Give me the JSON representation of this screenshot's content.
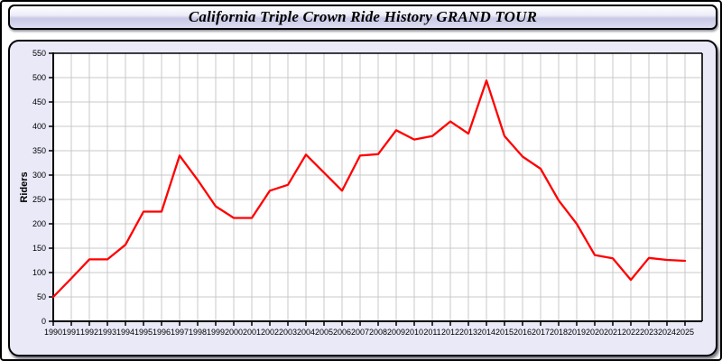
{
  "window": {
    "title": "California Triple Crown Ride History GRAND TOUR"
  },
  "chart_data": {
    "type": "line",
    "title": "California Triple Crown Ride History GRAND TOUR",
    "xlabel": "",
    "ylabel": "Riders",
    "ylim": [
      0,
      550
    ],
    "ytick_interval": 50,
    "grid": true,
    "legend": "none",
    "line_color": "#ff0000",
    "x": [
      1990,
      1991,
      1992,
      1993,
      1994,
      1995,
      1996,
      1997,
      1998,
      1999,
      2000,
      2001,
      2002,
      2003,
      2004,
      2005,
      2006,
      2007,
      2008,
      2009,
      2010,
      2011,
      2012,
      2013,
      2014,
      2015,
      2016,
      2017,
      2018,
      2019,
      2020,
      2021,
      2022,
      2023,
      2024,
      2025
    ],
    "series": [
      {
        "name": "Riders",
        "values": [
          50,
          88,
          127,
          127,
          157,
          225,
          225,
          340,
          290,
          236,
          212,
          212,
          268,
          280,
          342,
          305,
          268,
          340,
          343,
          392,
          373,
          380,
          410,
          385,
          494,
          380,
          338,
          313,
          248,
          200,
          136,
          129,
          85,
          130,
          126,
          124
        ]
      }
    ]
  },
  "colors": {
    "panel_background": "#e9e9f8",
    "plot_background": "#ffffff",
    "gridline": "#c9c9c9",
    "axis": "#000000",
    "line": "#ff0000"
  }
}
